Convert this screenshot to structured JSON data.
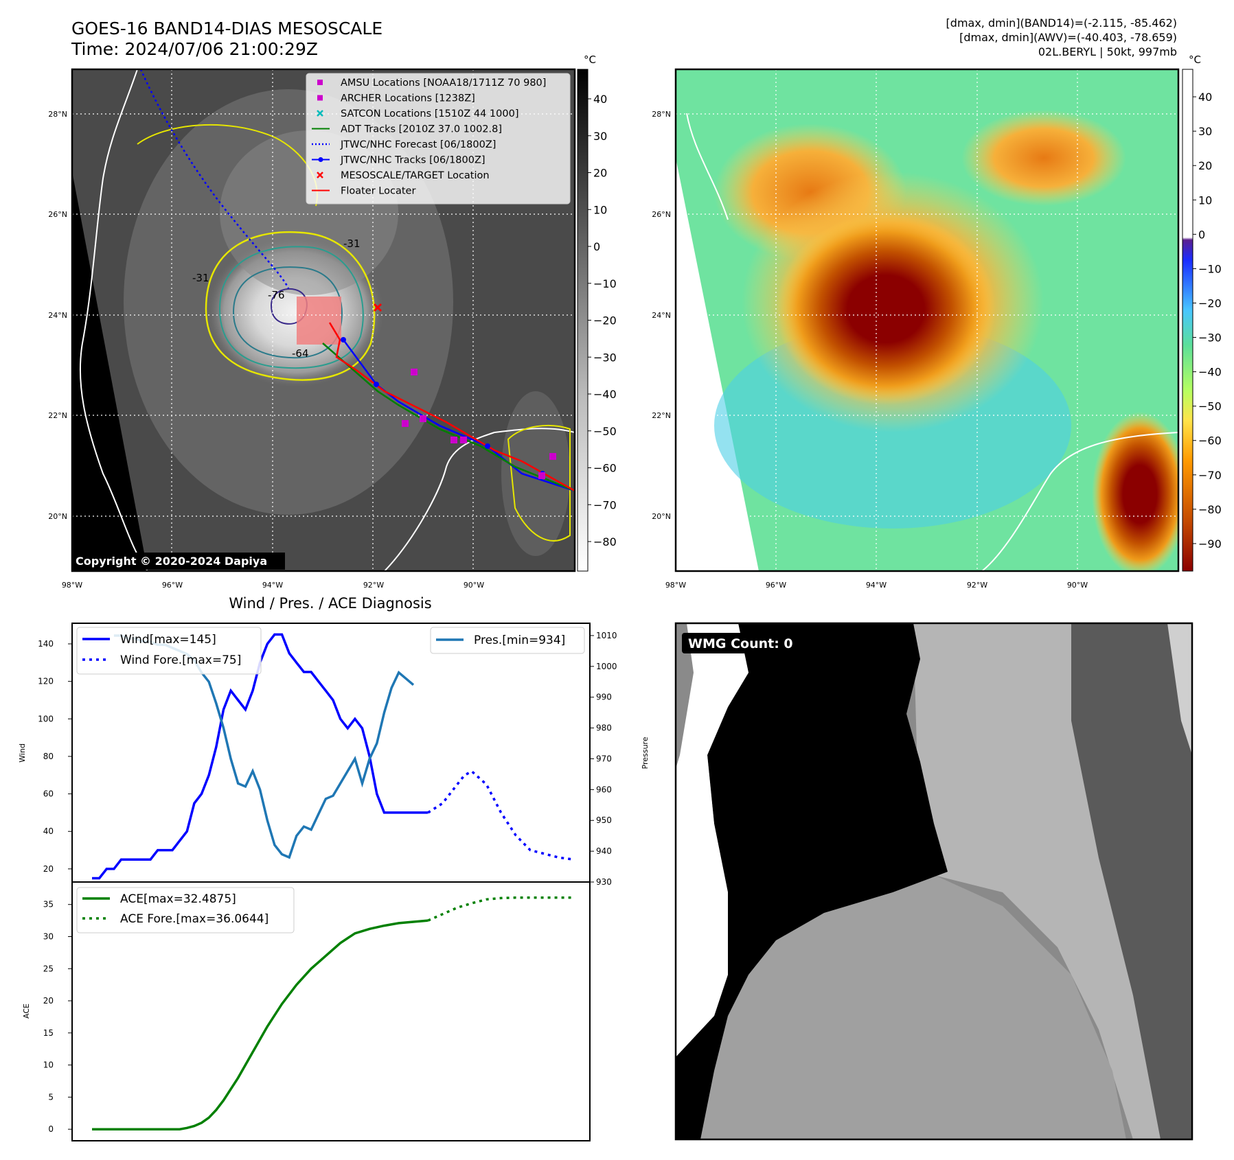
{
  "header": {
    "title_line1": "GOES-16 BAND14-DIAS MESOSCALE",
    "title_line2": "Time: 2024/07/06 21:00:29Z",
    "info_line1": "[dmax, dmin](BAND14)=(-2.115, -85.462)",
    "info_line2": "[dmax, dmin](AWV)=(-40.403, -78.659)",
    "info_line3": "02L.BERYL | 50kt, 997mb"
  },
  "map_ir": {
    "unit": "°C",
    "colorbar_ticks": [
      "40",
      "30",
      "20",
      "10",
      "0",
      "−10",
      "−20",
      "−30",
      "−40",
      "−50",
      "−60",
      "−70",
      "−80"
    ],
    "lat_labels": [
      "28°N",
      "26°N",
      "24°N",
      "22°N",
      "20°N"
    ],
    "lon_labels": [
      "98°W",
      "96°W",
      "94°W",
      "92°W",
      "90°W"
    ],
    "copyright": "Copyright © 2020-2024 Dapiya",
    "contour_labels": [
      "-31",
      "-31",
      "-64",
      "-76"
    ],
    "legend": [
      {
        "label": "AMSU Locations [NOAA18/1711Z 70 980]",
        "color": "#cc00cc"
      },
      {
        "label": "ARCHER Locations [1238Z]",
        "color": "#cc00cc"
      },
      {
        "label": "SATCON Locations [1510Z 44 1000]",
        "color": "#00bbbb"
      },
      {
        "label": "ADT Tracks [2010Z 37.0 1002.8]",
        "color": "#008000"
      },
      {
        "label": "JTWC/NHC Forecast [06/1800Z]",
        "color": "#0000ff"
      },
      {
        "label": "JTWC/NHC Tracks [06/1800Z]",
        "color": "#0000ff"
      },
      {
        "label": "MESOSCALE/TARGET Location",
        "color": "#ff0000"
      },
      {
        "label": "Floater Locater",
        "color": "#ff0000"
      }
    ]
  },
  "map_awv": {
    "unit": "°C",
    "colorbar_ticks": [
      "40",
      "30",
      "20",
      "10",
      "0",
      "−10",
      "−20",
      "−30",
      "−40",
      "−50",
      "−60",
      "−70",
      "−80",
      "−90"
    ],
    "lat_labels": [
      "28°N",
      "26°N",
      "24°N",
      "22°N",
      "20°N"
    ],
    "lon_labels": [
      "98°W",
      "96°W",
      "94°W",
      "92°W",
      "90°W"
    ]
  },
  "diagnosis_title": "Wind / Pres. / ACE Diagnosis",
  "wmg": {
    "label": "WMG Count: 0"
  },
  "chart_data": [
    {
      "type": "line",
      "title": "Wind / Pres. / ACE Diagnosis",
      "ylabel": "Wind",
      "ylabel_right": "Pressure",
      "ylim": [
        13,
        151
      ],
      "ylim_right": [
        930,
        1014
      ],
      "yticks": [
        20,
        40,
        60,
        80,
        100,
        120,
        140
      ],
      "yticks_right": [
        930,
        940,
        950,
        960,
        970,
        980,
        990,
        1000,
        1010
      ],
      "series": [
        {
          "name": "Wind[max=145]",
          "color": "#0000ff",
          "style": "solid",
          "x": [
            0,
            1,
            2,
            3,
            4,
            5,
            6,
            7,
            8,
            9,
            10,
            11,
            12,
            13,
            14,
            15,
            16,
            17,
            18,
            19,
            20,
            21,
            22,
            23,
            24,
            25,
            26,
            27,
            28,
            29,
            30,
            31,
            32,
            33,
            34,
            35,
            36,
            37,
            38,
            39,
            40,
            41,
            42,
            43,
            44,
            45,
            46
          ],
          "values": [
            15,
            15,
            20,
            20,
            25,
            25,
            25,
            25,
            25,
            30,
            30,
            30,
            35,
            40,
            55,
            60,
            70,
            85,
            105,
            115,
            110,
            105,
            115,
            130,
            140,
            145,
            145,
            135,
            130,
            125,
            125,
            120,
            115,
            110,
            100,
            95,
            100,
            95,
            80,
            60,
            50,
            50,
            50,
            50,
            50,
            50,
            50
          ]
        },
        {
          "name": "Wind Fore.[max=75]",
          "color": "#0000ff",
          "style": "dotted",
          "x": [
            46,
            48,
            50,
            51,
            52,
            54,
            56,
            58,
            60,
            62,
            63,
            64,
            66
          ],
          "values": [
            50,
            55,
            65,
            70,
            72,
            65,
            50,
            38,
            30,
            28,
            27,
            26,
            25
          ]
        },
        {
          "name": "Pres.[min=934]",
          "color": "#1f77b4",
          "style": "solid",
          "axis": "right",
          "x": [
            3,
            4,
            5,
            6,
            7,
            8,
            9,
            10,
            11,
            12,
            13,
            14,
            15,
            16,
            17,
            18,
            19,
            20,
            21,
            22,
            23,
            24,
            25,
            26,
            27,
            28,
            29,
            30,
            31,
            32,
            33,
            34,
            35,
            36,
            37,
            38,
            39,
            40,
            41,
            42,
            43,
            44
          ],
          "values": [
            1010,
            1010,
            1009,
            1009,
            1008,
            1008,
            1007,
            1007,
            1006,
            1005,
            1004,
            1002,
            998,
            995,
            988,
            980,
            970,
            962,
            961,
            966,
            960,
            950,
            942,
            939,
            938,
            945,
            948,
            947,
            952,
            957,
            958,
            962,
            966,
            970,
            962,
            970,
            975,
            985,
            993,
            998,
            996,
            994
          ]
        }
      ]
    },
    {
      "type": "line",
      "ylabel": "ACE",
      "ylim": [
        -1.8,
        38.5
      ],
      "yticks": [
        0,
        5,
        10,
        15,
        20,
        25,
        30,
        35
      ],
      "series": [
        {
          "name": "ACE[max=32.4875]",
          "color": "#008000",
          "style": "solid",
          "x": [
            0,
            2,
            4,
            6,
            8,
            10,
            11,
            12,
            13,
            14,
            15,
            16,
            17,
            18,
            20,
            22,
            24,
            26,
            28,
            30,
            32,
            34,
            36,
            38,
            40,
            42,
            44,
            46
          ],
          "values": [
            0,
            0,
            0,
            0,
            0,
            0,
            0,
            0,
            0.2,
            0.5,
            1,
            1.8,
            3,
            4.5,
            8,
            12,
            16,
            19.5,
            22.5,
            25,
            27,
            29,
            30.5,
            31.2,
            31.7,
            32.1,
            32.3,
            32.5
          ]
        },
        {
          "name": "ACE Fore.[max=36.0644]",
          "color": "#008000",
          "style": "dotted",
          "x": [
            46,
            48,
            50,
            52,
            54,
            56,
            58,
            60,
            62,
            64,
            66
          ],
          "values": [
            32.5,
            33.5,
            34.5,
            35.2,
            35.8,
            36,
            36.06,
            36.06,
            36.06,
            36.06,
            36.06
          ]
        }
      ]
    }
  ]
}
